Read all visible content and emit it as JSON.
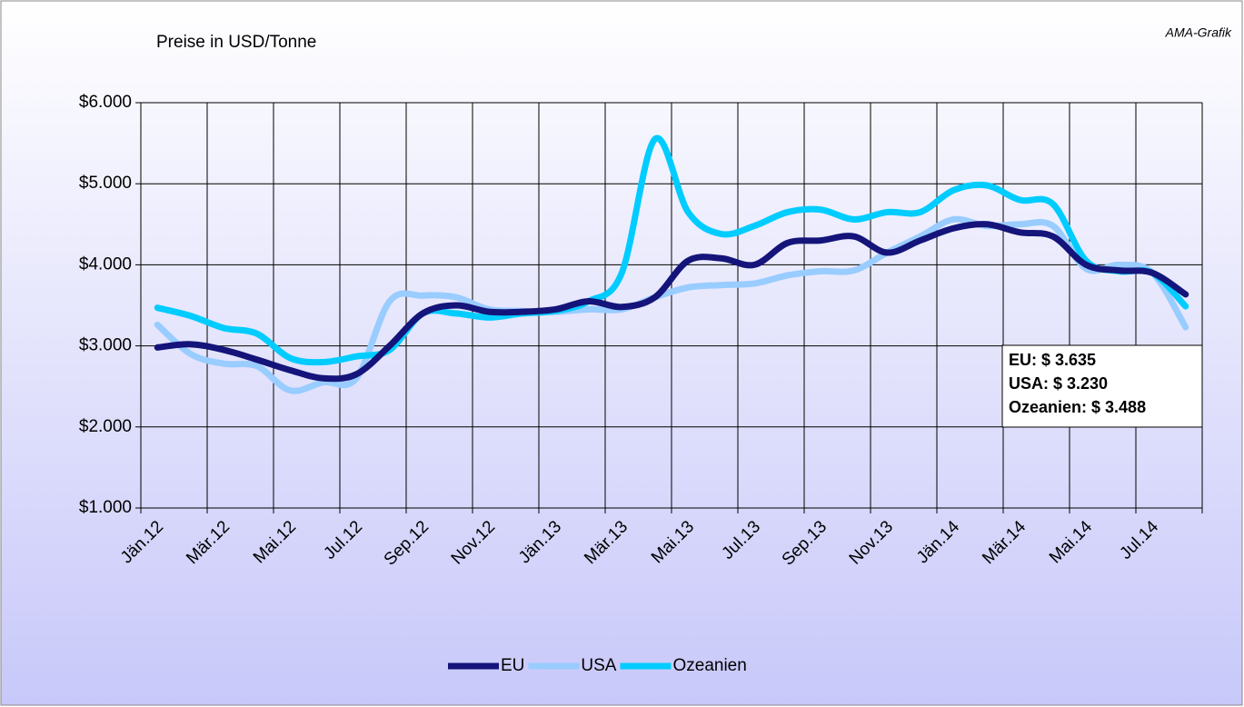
{
  "chart_data": {
    "type": "line",
    "title": "Preise in USD/Tonne",
    "source": "AMA-Grafik",
    "categories": [
      "Jän.12",
      null,
      "Mär.12",
      null,
      "Mai.12",
      null,
      "Jul.12",
      null,
      "Sep.12",
      null,
      "Nov.12",
      null,
      "Jän.13",
      null,
      "Mär.13",
      null,
      "Mai.13",
      null,
      "Jul.13",
      null,
      "Sep.13",
      null,
      "Nov.13",
      null,
      "Jän.14",
      null,
      "Mär.14",
      null,
      "Mai.14",
      null,
      "Jul.14",
      null
    ],
    "series": [
      {
        "name": "EU",
        "color": "#14147a",
        "values": [
          2980,
          3020,
          2950,
          2830,
          2700,
          2600,
          2650,
          3000,
          3400,
          3500,
          3420,
          3420,
          3450,
          3550,
          3480,
          3600,
          4050,
          4080,
          4000,
          4270,
          4300,
          4350,
          4150,
          4300,
          4450,
          4500,
          4400,
          4350,
          4000,
          3930,
          3900,
          3635
        ]
      },
      {
        "name": "USA",
        "color": "#99ccff",
        "values": [
          3260,
          2900,
          2780,
          2750,
          2450,
          2550,
          2600,
          3550,
          3620,
          3600,
          3450,
          3430,
          3420,
          3450,
          3450,
          3600,
          3720,
          3750,
          3770,
          3870,
          3920,
          3930,
          4150,
          4350,
          4560,
          4480,
          4500,
          4480,
          3950,
          4000,
          3900,
          3230
        ]
      },
      {
        "name": "Ozeanien",
        "color": "#00ccff",
        "values": [
          3470,
          3370,
          3220,
          3150,
          2850,
          2800,
          2870,
          2950,
          3400,
          3400,
          3350,
          3400,
          3430,
          3550,
          3900,
          5550,
          4650,
          4380,
          4480,
          4650,
          4680,
          4560,
          4650,
          4650,
          4920,
          4980,
          4800,
          4750,
          4050,
          3920,
          3900,
          3488
        ]
      }
    ],
    "ylim": [
      1000,
      6000
    ],
    "yticks": [
      {
        "value": 1000,
        "label": "$1.000"
      },
      {
        "value": 2000,
        "label": "$2.000"
      },
      {
        "value": 3000,
        "label": "$3.000"
      },
      {
        "value": 4000,
        "label": "$4.000"
      },
      {
        "value": 5000,
        "label": "$5.000"
      },
      {
        "value": 6000,
        "label": "$6.000"
      }
    ],
    "annotation": [
      "EU: $ 3.635",
      "USA: $ 3.230",
      "Ozeanien: $ 3.488"
    ],
    "grid": true,
    "legend": "bottom"
  }
}
